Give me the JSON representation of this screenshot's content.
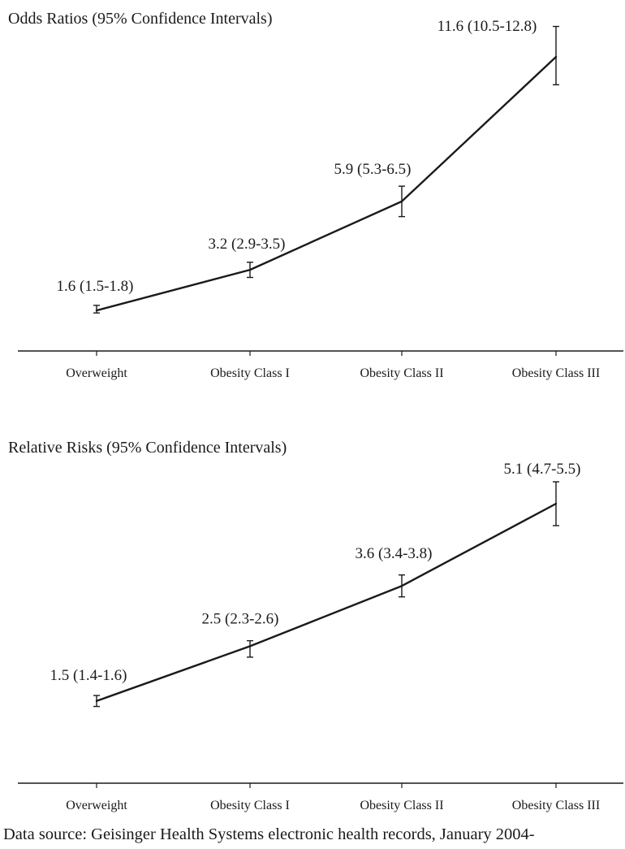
{
  "chart_data": [
    {
      "type": "line",
      "title": "Odds Ratios (95% Confidence Intervals)",
      "categories": [
        "Overweight",
        "Obesity Class I",
        "Obesity Class II",
        "Obesity Class III"
      ],
      "values": [
        1.6,
        3.2,
        5.9,
        11.6
      ],
      "ci_low": [
        1.5,
        2.9,
        5.3,
        10.5
      ],
      "ci_high": [
        1.8,
        3.5,
        6.5,
        12.8
      ],
      "data_labels": [
        "1.6 (1.5-1.8)",
        "3.2 (2.9-3.5)",
        "5.9 (5.3-6.5)",
        "11.6 (10.5-12.8)"
      ],
      "xlabel": "",
      "ylabel": "",
      "grid": false,
      "legend": false
    },
    {
      "type": "line",
      "title": "Relative Risks (95% Confidence Intervals)",
      "categories": [
        "Overweight",
        "Obesity Class I",
        "Obesity Class II",
        "Obesity Class III"
      ],
      "values": [
        1.5,
        2.5,
        3.6,
        5.1
      ],
      "ci_low": [
        1.4,
        2.3,
        3.4,
        4.7
      ],
      "ci_high": [
        1.6,
        2.6,
        3.8,
        5.5
      ],
      "data_labels": [
        "1.5 (1.4-1.6)",
        "2.5 (2.3-2.6)",
        "3.6 (3.4-3.8)",
        "5.1 (4.7-5.5)"
      ],
      "xlabel": "",
      "ylabel": "",
      "grid": false,
      "legend": false
    }
  ],
  "footer": {
    "source_text": "Data source: Geisinger Health Systems electronic health records, January 2004-"
  },
  "colors": {
    "line": "#1a1a1a",
    "background": "#ffffff"
  }
}
